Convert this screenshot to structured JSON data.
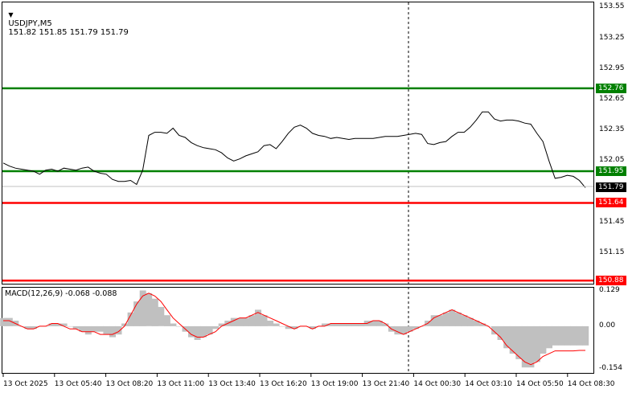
{
  "header": {
    "symbol": "USDJPY,M5",
    "ohlc": "151.82 151.85 151.79 151.79",
    "menu_icon": "triangle-down-icon"
  },
  "macd": {
    "label": "MACD(12,26,9) -0.068 -0.088",
    "scale": [
      "0.129",
      "0.00",
      "-0.154"
    ]
  },
  "price_scale": [
    "153.55",
    "153.25",
    "152.95",
    "152.65",
    "152.35",
    "152.05",
    "151.45",
    "151.15"
  ],
  "levels": [
    {
      "value": "152.76",
      "color": "#008000"
    },
    {
      "value": "151.95",
      "color": "#008000"
    },
    {
      "value": "151.64",
      "color": "#ff0000"
    },
    {
      "value": "150.88",
      "color": "#ff0000"
    }
  ],
  "current_price": {
    "value": "151.79",
    "color": "#000000"
  },
  "time_axis": [
    "13 Oct 2025",
    "13 Oct 05:40",
    "13 Oct 08:20",
    "13 Oct 11:00",
    "13 Oct 13:40",
    "13 Oct 16:20",
    "13 Oct 19:00",
    "13 Oct 21:40",
    "14 Oct 00:30",
    "14 Oct 03:10",
    "14 Oct 05:50",
    "14 Oct 08:30"
  ],
  "chart_data": {
    "type": "line",
    "title": "USDJPY,M5",
    "x": [
      "13 Oct 2025",
      "13 Oct 05:40",
      "13 Oct 08:20",
      "13 Oct 11:00",
      "13 Oct 13:40",
      "13 Oct 16:20",
      "13 Oct 19:00",
      "13 Oct 21:40",
      "14 Oct 00:30",
      "14 Oct 03:10",
      "14 Oct 05:50",
      "14 Oct 08:30"
    ],
    "price_series": [
      152.03,
      152.0,
      151.98,
      151.97,
      151.96,
      151.95,
      151.92,
      151.96,
      151.97,
      151.95,
      151.98,
      151.97,
      151.96,
      151.98,
      151.99,
      151.95,
      151.93,
      151.92,
      151.87,
      151.85,
      151.85,
      151.86,
      151.82,
      151.96,
      152.3,
      152.33,
      152.33,
      152.32,
      152.37,
      152.3,
      152.28,
      152.23,
      152.2,
      152.18,
      152.17,
      152.16,
      152.13,
      152.08,
      152.05,
      152.07,
      152.1,
      152.12,
      152.14,
      152.2,
      152.21,
      152.17,
      152.24,
      152.32,
      152.38,
      152.4,
      152.37,
      152.32,
      152.3,
      152.29,
      152.27,
      152.28,
      152.27,
      152.26,
      152.27,
      152.27,
      152.27,
      152.27,
      152.28,
      152.29,
      152.29,
      152.29,
      152.3,
      152.31,
      152.32,
      152.31,
      152.22,
      152.21,
      152.23,
      152.24,
      152.29,
      152.33,
      152.33,
      152.38,
      152.45,
      152.53,
      152.53,
      152.46,
      152.44,
      152.45,
      152.45,
      152.44,
      152.42,
      152.41,
      152.32,
      152.24,
      152.05,
      151.88,
      151.89,
      151.91,
      151.9,
      151.86,
      151.79
    ],
    "macd_histogram": [
      0.03,
      0.03,
      0.02,
      0.0,
      -0.01,
      -0.01,
      0.0,
      0.0,
      0.01,
      0.01,
      0.01,
      0.0,
      -0.01,
      -0.02,
      -0.03,
      -0.02,
      -0.02,
      -0.03,
      -0.04,
      -0.03,
      0.01,
      0.05,
      0.09,
      0.13,
      0.12,
      0.1,
      0.07,
      0.04,
      0.01,
      0.0,
      -0.02,
      -0.04,
      -0.05,
      -0.04,
      -0.03,
      -0.01,
      0.01,
      0.02,
      0.03,
      0.03,
      0.03,
      0.04,
      0.06,
      0.04,
      0.02,
      0.01,
      0.0,
      -0.01,
      -0.01,
      0.0,
      0.0,
      -0.01,
      0.0,
      0.01,
      0.01,
      0.01,
      0.01,
      0.01,
      0.01,
      0.01,
      0.02,
      0.02,
      0.02,
      0.01,
      -0.02,
      -0.03,
      -0.03,
      -0.02,
      -0.01,
      0.0,
      0.02,
      0.04,
      0.04,
      0.05,
      0.06,
      0.05,
      0.04,
      0.03,
      0.02,
      0.01,
      0.0,
      -0.03,
      -0.05,
      -0.08,
      -0.1,
      -0.12,
      -0.15,
      -0.15,
      -0.13,
      -0.1,
      -0.08,
      -0.07,
      -0.07,
      -0.07,
      -0.07,
      -0.07,
      -0.07
    ],
    "signal_line": [
      0.02,
      0.02,
      0.01,
      0.0,
      -0.01,
      -0.01,
      0.0,
      0.0,
      0.01,
      0.01,
      0.0,
      -0.01,
      -0.01,
      -0.02,
      -0.02,
      -0.02,
      -0.03,
      -0.03,
      -0.03,
      -0.02,
      0.0,
      0.04,
      0.08,
      0.11,
      0.12,
      0.11,
      0.09,
      0.06,
      0.03,
      0.01,
      -0.01,
      -0.03,
      -0.04,
      -0.04,
      -0.03,
      -0.02,
      0.0,
      0.01,
      0.02,
      0.03,
      0.03,
      0.04,
      0.05,
      0.04,
      0.03,
      0.02,
      0.01,
      0.0,
      -0.01,
      0.0,
      0.0,
      -0.01,
      0.0,
      0.0,
      0.01,
      0.01,
      0.01,
      0.01,
      0.01,
      0.01,
      0.01,
      0.02,
      0.02,
      0.01,
      -0.01,
      -0.02,
      -0.03,
      -0.02,
      -0.01,
      0.0,
      0.01,
      0.03,
      0.04,
      0.05,
      0.06,
      0.05,
      0.04,
      0.03,
      0.02,
      0.01,
      0.0,
      -0.02,
      -0.04,
      -0.07,
      -0.09,
      -0.11,
      -0.13,
      -0.14,
      -0.13,
      -0.11,
      -0.1,
      -0.09,
      -0.09,
      -0.09,
      -0.09,
      -0.088,
      -0.088
    ],
    "price_range": [
      150.85,
      153.6
    ],
    "macd_range": [
      -0.17,
      0.14
    ],
    "grid": false
  }
}
